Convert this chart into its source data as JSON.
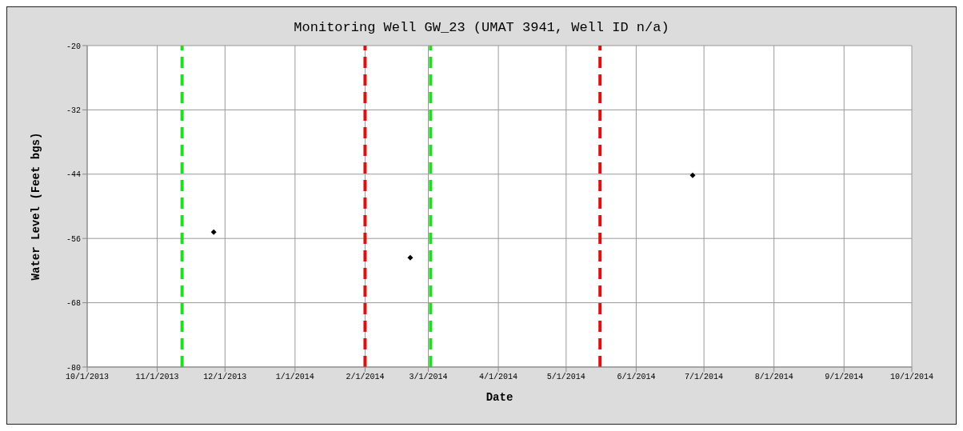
{
  "chart_data": {
    "type": "scatter",
    "title": "Monitoring Well GW_23 (UMAT 3941, Well ID n/a)",
    "xlabel": "Date",
    "ylabel": "Water Level (Feet bgs)",
    "x": [
      "2013-11-26",
      "2014-02-21",
      "2014-06-26"
    ],
    "series": [
      {
        "color": "#000000",
        "values": [
          -54.8,
          -59.6,
          -44.2
        ]
      }
    ],
    "marker": "diamond",
    "grid": true,
    "xlim": [
      "2013-10-01",
      "2014-10-01"
    ],
    "xticks": [
      {
        "value": "2013-10-01",
        "label": "10/1/2013"
      },
      {
        "value": "2013-11-01",
        "label": "11/1/2013"
      },
      {
        "value": "2013-12-01",
        "label": "12/1/2013"
      },
      {
        "value": "2014-01-01",
        "label": "1/1/2014"
      },
      {
        "value": "2014-02-01",
        "label": "2/1/2014"
      },
      {
        "value": "2014-03-01",
        "label": "3/1/2014"
      },
      {
        "value": "2014-04-01",
        "label": "4/1/2014"
      },
      {
        "value": "2014-05-01",
        "label": "5/1/2014"
      },
      {
        "value": "2014-06-01",
        "label": "6/1/2014"
      },
      {
        "value": "2014-07-01",
        "label": "7/1/2014"
      },
      {
        "value": "2014-08-01",
        "label": "8/1/2014"
      },
      {
        "value": "2014-09-01",
        "label": "9/1/2014"
      },
      {
        "value": "2014-10-01",
        "label": "10/1/2014"
      }
    ],
    "ylim": [
      -80,
      -20
    ],
    "yticks": [
      -80,
      -68,
      -56,
      -44,
      -32,
      -20
    ],
    "ref_lines": [
      {
        "axis": "x",
        "value": "2013-11-12",
        "color": "#22dd22",
        "line_style": "dashed"
      },
      {
        "axis": "x",
        "value": "2014-02-01",
        "color": "#dd1111",
        "line_style": "dashed"
      },
      {
        "axis": "x",
        "value": "2014-03-02",
        "color": "#22dd22",
        "line_style": "dashed"
      },
      {
        "axis": "x",
        "value": "2014-05-16",
        "color": "#dd1111",
        "line_style": "dashed"
      }
    ]
  }
}
